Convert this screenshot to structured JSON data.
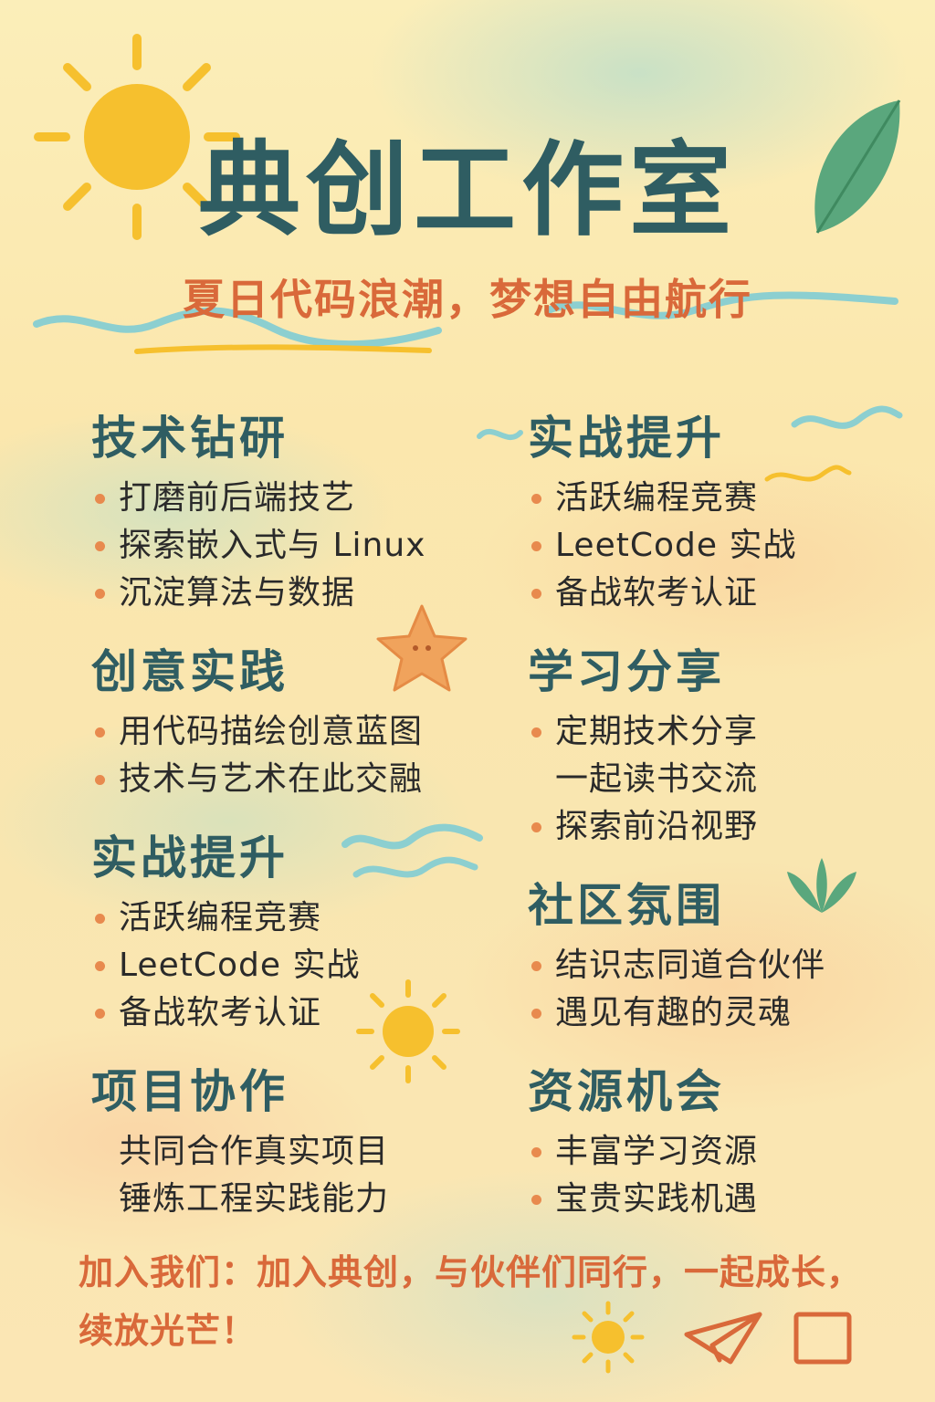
{
  "header": {
    "title": "典创工作室",
    "subtitle": "夏日代码浪潮，梦想自由航行"
  },
  "colors": {
    "title": "#2f5d62",
    "accent": "#d9693a",
    "bullet": "#e88a4e",
    "sun": "#f6c02e",
    "leaf": "#4f9e76"
  },
  "icons": [
    "sun-icon",
    "leaf-icon",
    "starfish-icon",
    "wave-icon",
    "plant-icon",
    "paper-plane-icon",
    "square-icon"
  ],
  "sections": {
    "left": [
      {
        "title": "技术钻研",
        "items": [
          "打磨前后端技艺",
          "探索嵌入式与 Linux",
          "沉淀算法与数据"
        ]
      },
      {
        "title": "创意实践",
        "items": [
          "用代码描绘创意蓝图",
          "技术与艺术在此交融"
        ]
      },
      {
        "title": "实战提升",
        "items": [
          "活跃编程竞赛",
          "LeetCode 实战",
          "备战软考认证"
        ]
      },
      {
        "title": "项目协作",
        "items": [
          "共同合作真实项目",
          "锤炼工程实践能力"
        ]
      }
    ],
    "right": [
      {
        "title": "实战提升",
        "items": [
          "活跃编程竞赛",
          "LeetCode 实战",
          "备战软考认证"
        ]
      },
      {
        "title": "学习分享",
        "items": [
          "定期技术分享",
          "一起读书交流",
          "探索前沿视野"
        ]
      },
      {
        "title": "社区氛围",
        "items": [
          "结识志同道合伙伴",
          "遇见有趣的灵魂"
        ]
      },
      {
        "title": "资源机会",
        "items": [
          "丰富学习资源",
          "宝贵实践机遇"
        ]
      }
    ]
  },
  "footer": {
    "text": "加入我们：加入典创，与伙伴们同行，一起成长，续放光芒！"
  }
}
